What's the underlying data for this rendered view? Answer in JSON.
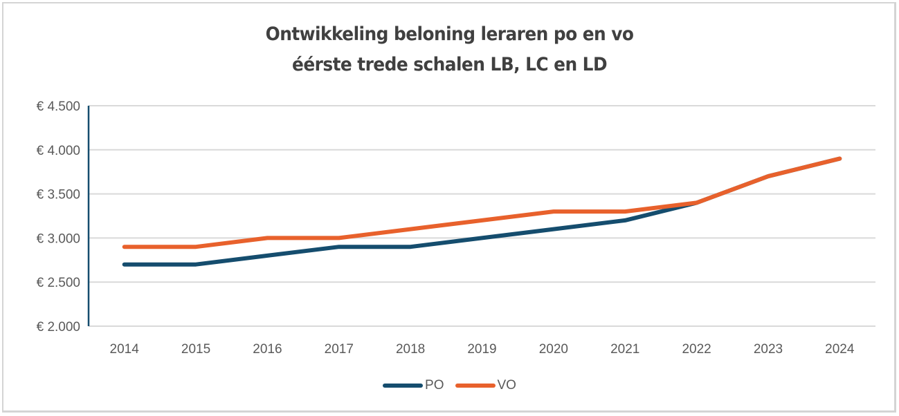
{
  "chart_data": {
    "type": "line",
    "title": "Ontwikkeling beloning leraren po en vo",
    "subtitle": "éérste trede schalen LB, LC en LD",
    "title_lines": [
      "Ontwikkeling beloning leraren po en vo",
      "éérste trede schalen LB, LC en LD"
    ],
    "xlabel": "",
    "ylabel": "",
    "categories": [
      "2014",
      "2015",
      "2016",
      "2017",
      "2018",
      "2019",
      "2020",
      "2021",
      "2022",
      "2023",
      "2024"
    ],
    "series": [
      {
        "name": "PO",
        "color": "#154d6e",
        "values": [
          2700,
          2700,
          2800,
          2900,
          2900,
          3000,
          3100,
          3200,
          3400,
          3700,
          3900
        ]
      },
      {
        "name": "VO",
        "color": "#e8612c",
        "values": [
          2900,
          2900,
          3000,
          3000,
          3100,
          3200,
          3300,
          3300,
          3400,
          3700,
          3900
        ]
      }
    ],
    "ylim": [
      2000,
      4500
    ],
    "yticks": [
      2000,
      2500,
      3000,
      3500,
      4000,
      4500
    ],
    "ytick_labels": [
      "€ 2.000",
      "€ 2.500",
      "€ 3.000",
      "€ 3.500",
      "€ 4.000",
      "€ 4.500"
    ],
    "grid": true,
    "legend_position": "bottom",
    "colors": {
      "gridline": "#d9d9d9",
      "axis": "#154d6e",
      "text": "#595959",
      "title": "#404040"
    }
  }
}
